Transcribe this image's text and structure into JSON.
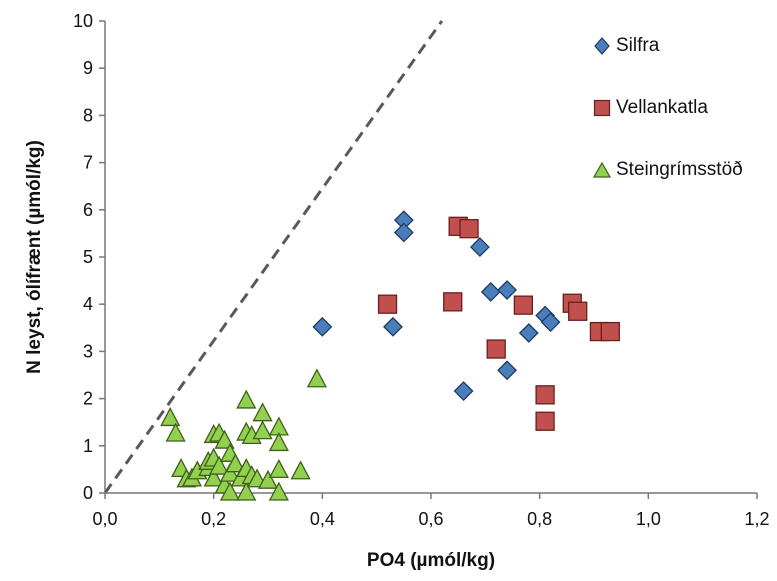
{
  "chart_data": {
    "type": "scatter",
    "title": "",
    "xlabel": "PO4 (µmól/kg)",
    "ylabel": "N leyst, ólífrænt (µmól/kg)",
    "xlim": [
      0,
      1.2
    ],
    "ylim": [
      0,
      10
    ],
    "xticks": [
      "0,0",
      "0,2",
      "0,4",
      "0,6",
      "0,8",
      "1,0",
      "1,2"
    ],
    "yticks": [
      "0",
      "1",
      "2",
      "3",
      "4",
      "5",
      "6",
      "7",
      "8",
      "9",
      "10"
    ],
    "grid": false,
    "legend_position": "top-right",
    "reference_line": {
      "style": "dashed",
      "color": "#595959",
      "from": [
        0,
        0
      ],
      "to": [
        0.62,
        10
      ]
    },
    "series": [
      {
        "name": "Silfra",
        "marker": "diamond",
        "color": "#4a7ebb",
        "points": [
          [
            0.4,
            3.52
          ],
          [
            0.53,
            3.52
          ],
          [
            0.55,
            5.78
          ],
          [
            0.55,
            5.52
          ],
          [
            0.66,
            2.16
          ],
          [
            0.69,
            5.21
          ],
          [
            0.71,
            4.26
          ],
          [
            0.74,
            4.3
          ],
          [
            0.74,
            2.6
          ],
          [
            0.78,
            3.39
          ],
          [
            0.81,
            3.76
          ],
          [
            0.82,
            3.62
          ]
        ]
      },
      {
        "name": "Vellankatla",
        "marker": "square",
        "color": "#c0504d",
        "points": [
          [
            0.52,
            4.0
          ],
          [
            0.64,
            4.05
          ],
          [
            0.65,
            5.65
          ],
          [
            0.67,
            5.6
          ],
          [
            0.72,
            3.05
          ],
          [
            0.77,
            3.98
          ],
          [
            0.81,
            2.08
          ],
          [
            0.81,
            1.52
          ],
          [
            0.86,
            4.02
          ],
          [
            0.87,
            3.85
          ],
          [
            0.91,
            3.42
          ],
          [
            0.93,
            3.42
          ]
        ]
      },
      {
        "name": "Steingrímsstöð",
        "marker": "triangle",
        "color": "#92d050",
        "points": [
          [
            0.12,
            1.58
          ],
          [
            0.13,
            1.25
          ],
          [
            0.14,
            0.5
          ],
          [
            0.15,
            0.28
          ],
          [
            0.16,
            0.3
          ],
          [
            0.17,
            0.45
          ],
          [
            0.19,
            0.52
          ],
          [
            0.19,
            0.65
          ],
          [
            0.2,
            1.22
          ],
          [
            0.2,
            0.72
          ],
          [
            0.2,
            0.3
          ],
          [
            0.21,
            1.25
          ],
          [
            0.21,
            0.55
          ],
          [
            0.22,
            1.1
          ],
          [
            0.22,
            0.15
          ],
          [
            0.23,
            0.82
          ],
          [
            0.23,
            0.4
          ],
          [
            0.23,
            0.0
          ],
          [
            0.24,
            0.6
          ],
          [
            0.25,
            0.3
          ],
          [
            0.26,
            1.95
          ],
          [
            0.26,
            1.27
          ],
          [
            0.26,
            0.5
          ],
          [
            0.26,
            0.0
          ],
          [
            0.27,
            1.2
          ],
          [
            0.27,
            0.35
          ],
          [
            0.28,
            0.28
          ],
          [
            0.29,
            1.68
          ],
          [
            0.29,
            1.3
          ],
          [
            0.3,
            0.25
          ],
          [
            0.32,
            1.38
          ],
          [
            0.32,
            1.05
          ],
          [
            0.32,
            0.48
          ],
          [
            0.32,
            0.0
          ],
          [
            0.36,
            0.45
          ],
          [
            0.39,
            2.4
          ]
        ]
      }
    ]
  }
}
